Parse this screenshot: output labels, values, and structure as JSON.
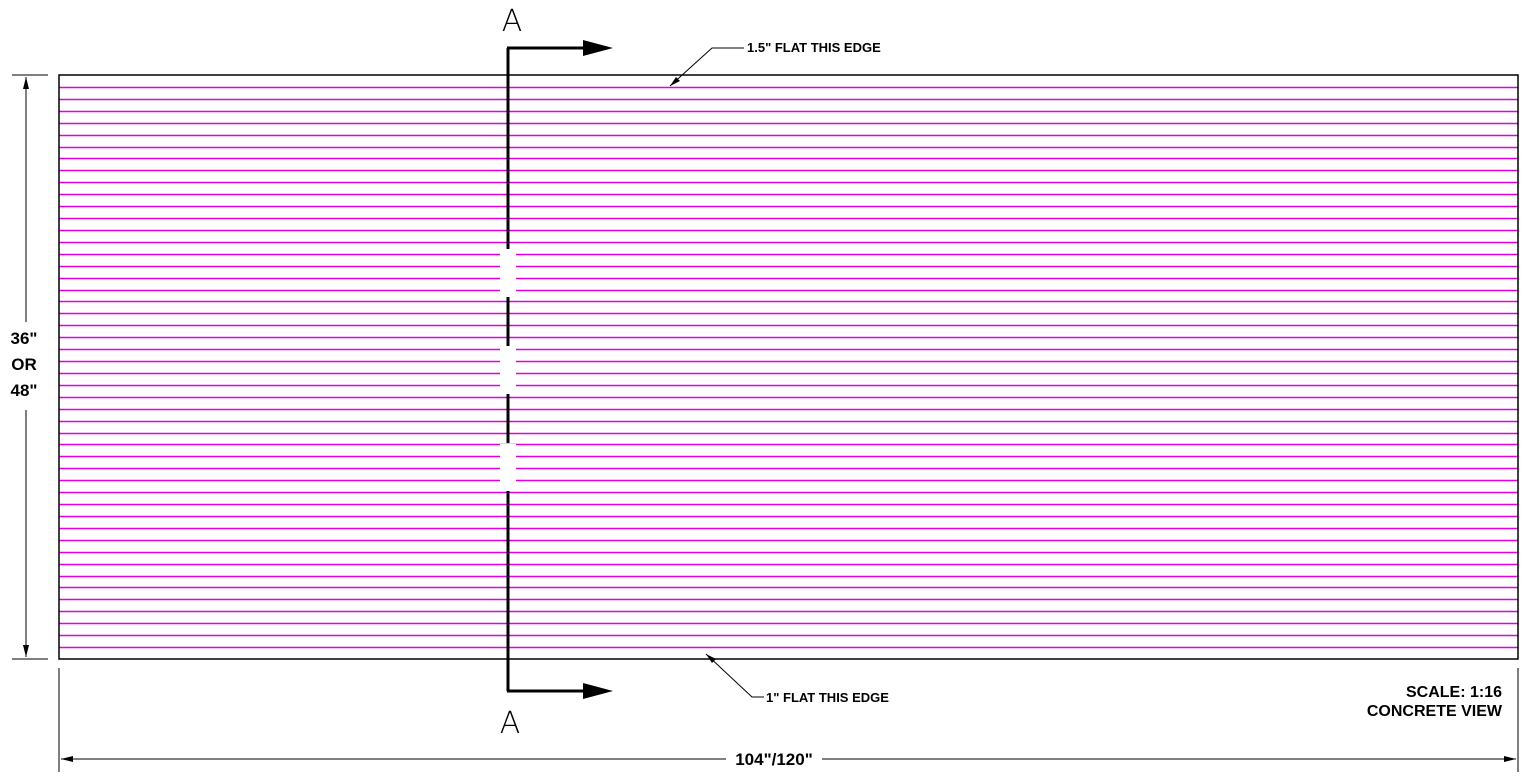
{
  "drawing": {
    "section_marker_top": "A",
    "section_marker_bottom": "A",
    "top_edge_note": "1.5\" FLAT THIS EDGE",
    "bottom_edge_note": "1\" FLAT THIS EDGE",
    "height_dimension": [
      "36\"",
      "OR",
      "48\""
    ],
    "width_dimension": "104\"/120\"",
    "scale_label": "SCALE: 1:16",
    "view_label": "CONCRETE VIEW",
    "groove_line_count": 48,
    "colors": {
      "groove_lines": "#e000e0",
      "outline": "#000000",
      "background": "#ffffff"
    }
  }
}
